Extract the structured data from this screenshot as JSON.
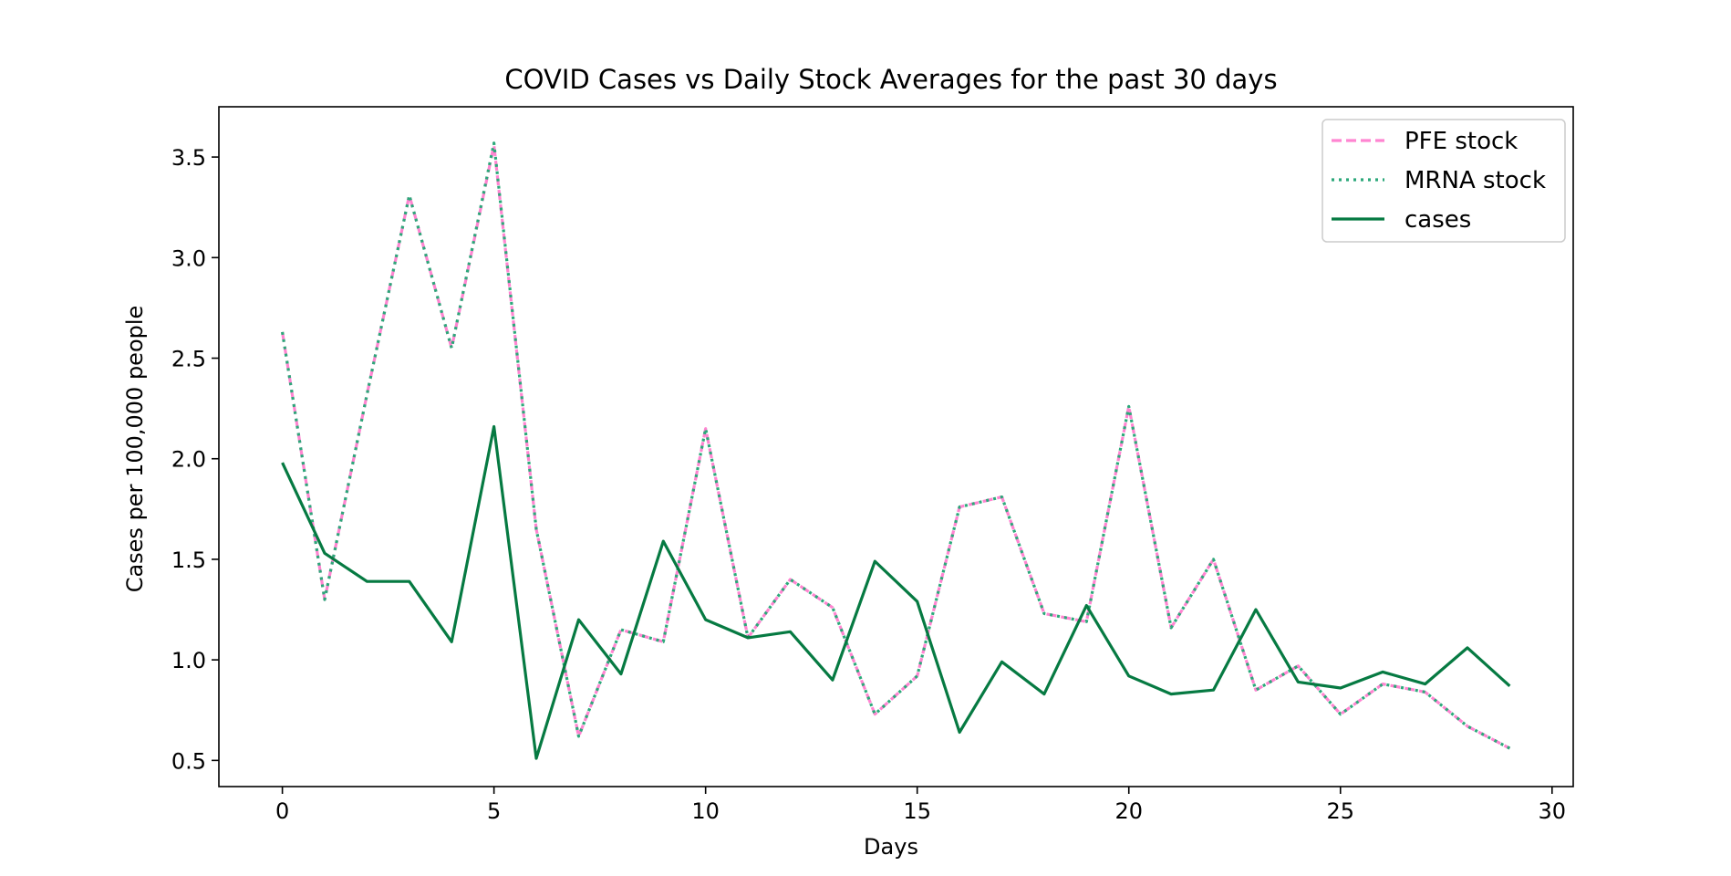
{
  "chart_data": {
    "type": "line",
    "title": "COVID Cases vs Daily Stock Averages for the past 30 days",
    "xlabel": "Days",
    "ylabel": "Cases per 100,000 people",
    "xlim": [
      -1.5,
      30.5
    ],
    "ylim": [
      0.37,
      3.75
    ],
    "xticks": [
      0,
      5,
      10,
      15,
      20,
      25,
      30
    ],
    "yticks": [
      0.5,
      1.0,
      1.5,
      2.0,
      2.5,
      3.0,
      3.5
    ],
    "x": [
      0,
      1,
      2,
      3,
      4,
      5,
      6,
      7,
      8,
      9,
      10,
      11,
      12,
      13,
      14,
      15,
      16,
      17,
      18,
      19,
      20,
      21,
      22,
      23,
      24,
      25,
      26,
      27,
      28,
      29
    ],
    "legend_position": "top-right",
    "grid": false,
    "series": [
      {
        "name": "PFE stock",
        "color": "#ff85d1",
        "style": "dashed",
        "values": [
          2.63,
          1.3,
          2.32,
          3.31,
          2.55,
          3.56,
          1.65,
          0.62,
          1.15,
          1.09,
          2.15,
          1.11,
          1.4,
          1.26,
          0.73,
          0.92,
          1.76,
          1.81,
          1.23,
          1.19,
          2.26,
          1.16,
          1.5,
          0.85,
          0.97,
          0.73,
          0.88,
          0.84,
          0.67,
          0.56
        ]
      },
      {
        "name": "MRNA stock",
        "color": "#2ca87a",
        "style": "dotted",
        "values": [
          2.63,
          1.3,
          2.32,
          3.31,
          2.55,
          3.57,
          1.65,
          0.62,
          1.15,
          1.09,
          2.15,
          1.11,
          1.4,
          1.26,
          0.73,
          0.92,
          1.76,
          1.81,
          1.23,
          1.19,
          2.26,
          1.16,
          1.5,
          0.85,
          0.97,
          0.73,
          0.88,
          0.84,
          0.67,
          0.56
        ]
      },
      {
        "name": "cases",
        "color": "#067a42",
        "style": "solid",
        "values": [
          1.98,
          1.53,
          1.39,
          1.39,
          1.09,
          2.16,
          0.51,
          1.2,
          0.93,
          1.59,
          1.2,
          1.11,
          1.14,
          0.9,
          1.49,
          1.29,
          0.64,
          0.99,
          0.83,
          1.27,
          0.92,
          0.83,
          0.85,
          1.25,
          0.89,
          0.86,
          0.94,
          0.88,
          1.06,
          0.87
        ]
      }
    ]
  }
}
